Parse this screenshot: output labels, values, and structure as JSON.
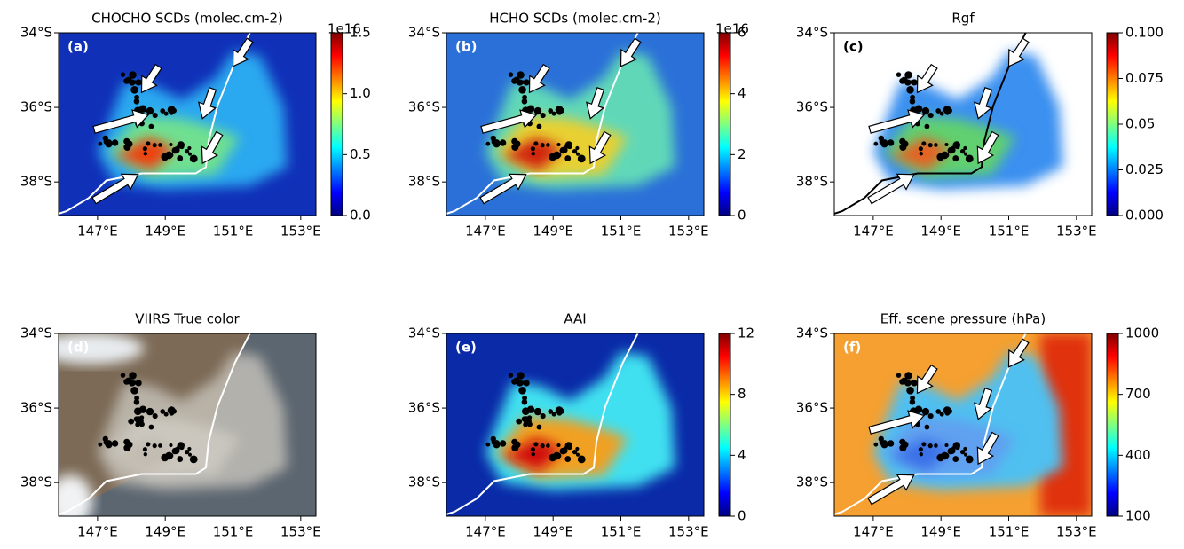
{
  "chart_data": [
    {
      "type": "map",
      "title": "CHOCHO SCDs (molec.cm-2)",
      "panel_label": "(a)",
      "xlim": [
        145.85,
        153.45
      ],
      "ylim": [
        -38.9,
        -34
      ],
      "xticks": [
        {
          "value": 147,
          "label": "147°E"
        },
        {
          "value": 149,
          "label": "149°E"
        },
        {
          "value": 151,
          "label": "151°E"
        },
        {
          "value": 153,
          "label": "153°E"
        }
      ],
      "yticks": [
        {
          "value": -34,
          "label": "34°S"
        },
        {
          "value": -36,
          "label": "36°S"
        },
        {
          "value": -38,
          "label": "38°S"
        }
      ],
      "colormap": "jet",
      "clim": [
        0,
        1.5
      ],
      "cticks": [
        {
          "value": 0,
          "label": "0.0"
        },
        0.5,
        {
          "value": 1,
          "label": "1.0"
        },
        1.5
      ],
      "coffset": "1e16"
    },
    {
      "type": "map",
      "title": "HCHO SCDs (molec.cm-2)",
      "panel_label": "(b)",
      "xlim": [
        145.85,
        153.45
      ],
      "ylim": [
        -38.9,
        -34
      ],
      "xticks": [
        {
          "value": 147,
          "label": "147°E"
        },
        {
          "value": 149,
          "label": "149°E"
        },
        {
          "value": 151,
          "label": "151°E"
        },
        {
          "value": 153,
          "label": "153°E"
        }
      ],
      "yticks": [
        {
          "value": -34,
          "label": "34°S"
        },
        {
          "value": -36,
          "label": "36°S"
        },
        {
          "value": -38,
          "label": "38°S"
        }
      ],
      "colormap": "jet",
      "clim": [
        0,
        6
      ],
      "cticks": [
        0,
        2,
        4,
        6
      ],
      "coffset": "1e16"
    },
    {
      "type": "map",
      "title": "Rgf",
      "panel_label": "(c)",
      "xlim": [
        145.85,
        153.45
      ],
      "ylim": [
        -38.9,
        -34
      ],
      "xticks": [
        {
          "value": 147,
          "label": "147°E"
        },
        {
          "value": 149,
          "label": "149°E"
        },
        {
          "value": 151,
          "label": "151°E"
        },
        {
          "value": 153,
          "label": "153°E"
        }
      ],
      "yticks": [
        {
          "value": -34,
          "label": "34°S"
        },
        {
          "value": -36,
          "label": "36°S"
        },
        {
          "value": -38,
          "label": "38°S"
        }
      ],
      "colormap": "jet",
      "clim": [
        0,
        0.1
      ],
      "cticks": [
        {
          "value": 0,
          "label": "0.000"
        },
        0.025,
        0.05,
        0.075,
        {
          "value": 0.1,
          "label": "0.100"
        }
      ]
    },
    {
      "type": "map",
      "title": "VIIRS True color",
      "panel_label": "(d)",
      "xlim": [
        145.85,
        153.45
      ],
      "ylim": [
        -38.9,
        -34
      ],
      "xticks": [
        {
          "value": 147,
          "label": "147°E"
        },
        {
          "value": 149,
          "label": "149°E"
        },
        {
          "value": 151,
          "label": "151°E"
        },
        {
          "value": 153,
          "label": "153°E"
        }
      ],
      "yticks": [
        {
          "value": -34,
          "label": "34°S"
        },
        {
          "value": -36,
          "label": "36°S"
        },
        {
          "value": -38,
          "label": "38°S"
        }
      ]
    },
    {
      "type": "map",
      "title": "AAI",
      "panel_label": "(e)",
      "xlim": [
        145.85,
        153.45
      ],
      "ylim": [
        -38.9,
        -34
      ],
      "xticks": [
        {
          "value": 147,
          "label": "147°E"
        },
        {
          "value": 149,
          "label": "149°E"
        },
        {
          "value": 151,
          "label": "151°E"
        },
        {
          "value": 153,
          "label": "153°E"
        }
      ],
      "yticks": [
        {
          "value": -34,
          "label": "34°S"
        },
        {
          "value": -36,
          "label": "36°S"
        },
        {
          "value": -38,
          "label": "38°S"
        }
      ],
      "colormap": "jet",
      "clim": [
        0,
        12
      ],
      "cticks": [
        0,
        4,
        8,
        12
      ]
    },
    {
      "type": "map",
      "title": "Eff. scene pressure (hPa)",
      "panel_label": "(f)",
      "xlim": [
        145.85,
        153.45
      ],
      "ylim": [
        -38.9,
        -34
      ],
      "xticks": [
        {
          "value": 147,
          "label": "147°E"
        },
        {
          "value": 149,
          "label": "149°E"
        },
        {
          "value": 151,
          "label": "151°E"
        },
        {
          "value": 153,
          "label": "153°E"
        }
      ],
      "yticks": [
        {
          "value": -34,
          "label": "34°S"
        },
        {
          "value": -36,
          "label": "36°S"
        },
        {
          "value": -38,
          "label": "38°S"
        }
      ],
      "colormap": "jet",
      "clim": [
        100,
        1000
      ],
      "cticks": [
        100,
        400,
        700,
        1000
      ]
    }
  ]
}
